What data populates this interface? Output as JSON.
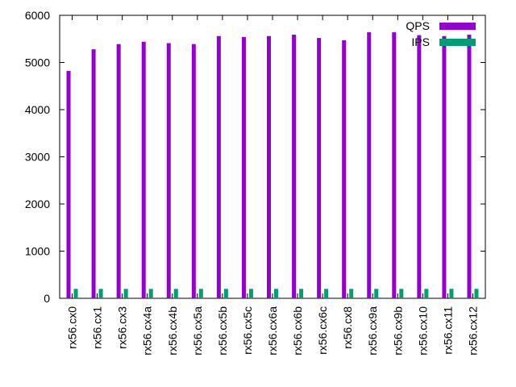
{
  "chart_data": {
    "type": "bar",
    "title": "",
    "xlabel": "",
    "ylabel": "",
    "ylim": [
      0,
      6000
    ],
    "yticks": [
      0,
      1000,
      2000,
      3000,
      4000,
      5000,
      6000
    ],
    "grid": false,
    "legend_position": "top-right",
    "categories": [
      "rx56.cx0",
      "rx56.cx1",
      "rx56.cx3",
      "rx56.cx4a",
      "rx56.cx4b",
      "rx56.cx5a",
      "rx56.cx5b",
      "rx56.cx5c",
      "rx56.cx6a",
      "rx56.cx6b",
      "rx56.cx6c",
      "rx56.cx8",
      "rx56.cx9a",
      "rx56.cx9b",
      "rx56.cx10",
      "rx56.cx11",
      "rx56.cx12"
    ],
    "series": [
      {
        "name": "QPS",
        "color": "#9400d3",
        "values": [
          4820,
          5280,
          5390,
          5440,
          5410,
          5390,
          5560,
          5540,
          5560,
          5590,
          5520,
          5470,
          5640,
          5640,
          5580,
          5560,
          5590
        ]
      },
      {
        "name": "IPS",
        "color": "#009e73",
        "values": [
          200,
          200,
          200,
          200,
          200,
          200,
          200,
          200,
          200,
          200,
          200,
          200,
          200,
          200,
          200,
          200,
          200
        ]
      }
    ]
  }
}
